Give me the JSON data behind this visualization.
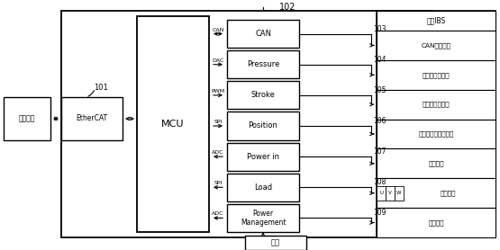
{
  "fig_width": 5.55,
  "fig_height": 2.78,
  "dpi": 100,
  "bg_color": "#ffffff",
  "sig_labels": [
    "CAN",
    "Pressure",
    "Stroke",
    "Position",
    "Power in",
    "Load",
    "Power\nManagement"
  ],
  "protocols": [
    "CAN",
    "DAC",
    "PWM",
    "SPI",
    "ADC",
    "SPI",
    "ADC"
  ],
  "directions": [
    "both",
    "right",
    "right",
    "right",
    "left",
    "left",
    "left"
  ],
  "right_sub_labels": [
    "CAN通信接口",
    "压力传感器接口",
    "位移传感器接口",
    "电机位置传感器接口",
    "输出电源",
    "电机接口",
    "输入电源"
  ],
  "labels_nums": [
    "103",
    "104",
    "105",
    "106",
    "107",
    "108",
    "109"
  ],
  "uvw": [
    "U",
    "V",
    "W"
  ]
}
